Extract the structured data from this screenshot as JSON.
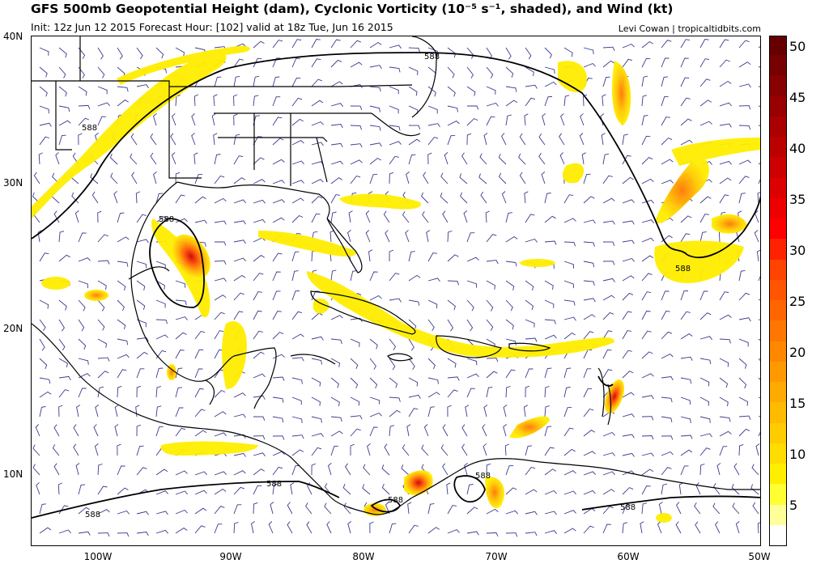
{
  "header": {
    "title": "GFS 500mb Geopotential Height (dam), Cyclonic Vorticity (10⁻⁵ s⁻¹, shaded), and Wind (kt)",
    "subtitle": "Init: 12z Jun 12 2015   Forecast Hour: [102]   valid at 18z Tue, Jun 16 2015",
    "credit": "Levi Cowan | tropicaltidbits.com"
  },
  "axes": {
    "lat_labels": [
      "40N",
      "30N",
      "20N",
      "10N"
    ],
    "lon_labels": [
      "100W",
      "90W",
      "80W",
      "70W",
      "60W",
      "50W"
    ]
  },
  "contour_labels": [
    "588",
    "588",
    "588",
    "588",
    "588",
    "588",
    "588",
    "588",
    "588"
  ],
  "colorbar": {
    "labels": [
      "50",
      "45",
      "40",
      "35",
      "30",
      "25",
      "20",
      "15",
      "10",
      "5"
    ],
    "colors": [
      "#ffffff",
      "#ffff99",
      "#ffff33",
      "#ffee00",
      "#ffdd00",
      "#ffcc00",
      "#ffbb00",
      "#ffaa00",
      "#ff9900",
      "#ff8800",
      "#ff7700",
      "#ff6600",
      "#ff5500",
      "#ff4400",
      "#ff2200",
      "#ff0000",
      "#ee0000",
      "#dd0000",
      "#cc0000",
      "#bb0000",
      "#aa0000",
      "#990000",
      "#880000",
      "#770000",
      "#660000"
    ]
  },
  "colors": {
    "vorticity_low": "#ffee00",
    "vorticity_high": "#cc0000",
    "wind_barb": "#3a3a8c",
    "contour": "#000000"
  }
}
